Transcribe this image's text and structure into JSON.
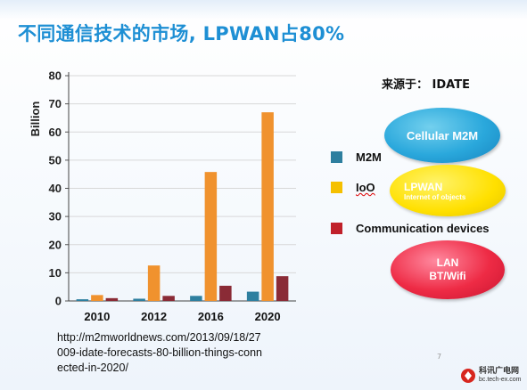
{
  "slide": {
    "title": "不同通信技术的市场, LPWAN占80%",
    "source": "来源于： IDATE",
    "url_text": "http://m2mworldnews.com/2013/09/18/27009-idate-forecasts-80-billion-things-connected-in-2020/",
    "page_mark": "7"
  },
  "legend": [
    {
      "label": "M2M",
      "color": "#2e7f9f"
    },
    {
      "label": "IoO",
      "color": "#f5c000"
    },
    {
      "label": "Communication  devices",
      "color": "#c0202a"
    }
  ],
  "bubbles": {
    "cellular": "Cellular M2M",
    "lpwan_line1": "LPWAN",
    "lpwan_line2": "Internet of objects",
    "lan_line1": "LAN",
    "lan_line2": "BT/Wifi"
  },
  "colors": {
    "title": "#1e8fd4",
    "m2m": "#2e7f9f",
    "ioo": "#f0922e",
    "comm": "#8a2b36",
    "grid": "#d8d8d8",
    "cellular": "#2aa8dc",
    "lpwan": "#ffe000",
    "lan": "#ee2b45"
  },
  "watermark": {
    "name": "科讯广电网",
    "url": "bc.tech-ex.com"
  },
  "chart_data": {
    "type": "bar",
    "categories": [
      "2010",
      "2012",
      "2016",
      "2020"
    ],
    "series": [
      {
        "name": "M2M",
        "values": [
          0.6,
          0.8,
          1.8,
          3.3
        ]
      },
      {
        "name": "IoO",
        "values": [
          2.1,
          12.6,
          45.8,
          67.0
        ]
      },
      {
        "name": "Communication  devices",
        "values": [
          1.0,
          1.8,
          5.4,
          8.8
        ]
      }
    ],
    "ylabel": "Billion",
    "ylim": [
      0,
      80
    ],
    "yticks": [
      0,
      10,
      20,
      30,
      40,
      50,
      60,
      70,
      80
    ],
    "grid": true
  }
}
